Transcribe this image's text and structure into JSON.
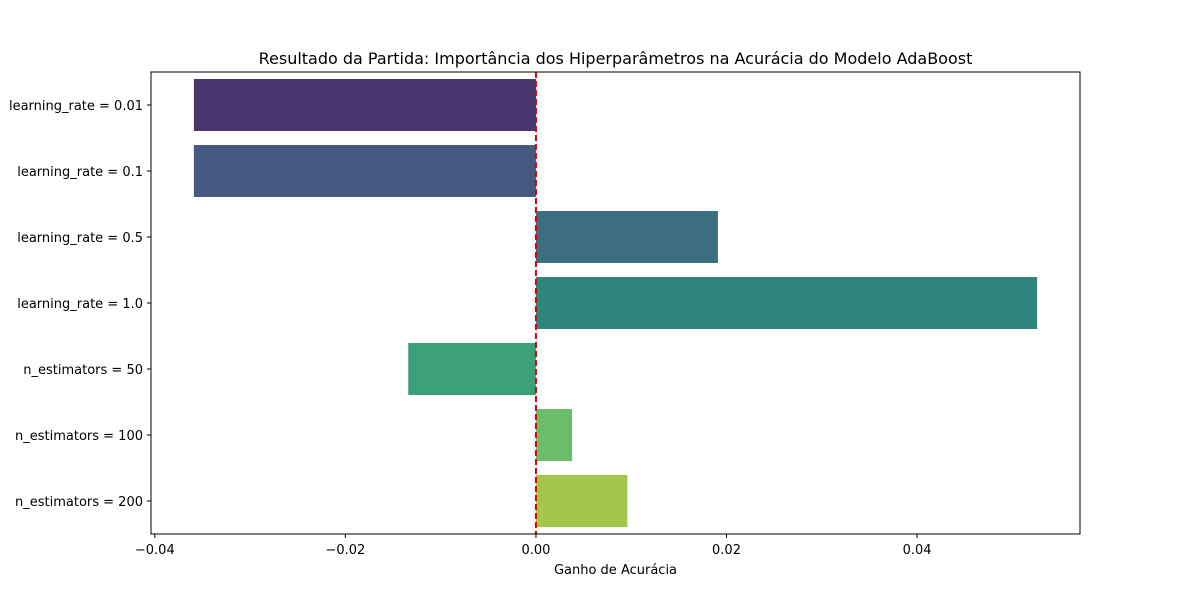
{
  "chart_data": {
    "type": "bar",
    "orientation": "horizontal",
    "title": "Resultado da Partida: Importância dos Hiperparâmetros na Acurácia do Modelo AdaBoost",
    "xlabel": "Ganho de Acurácia",
    "ylabel": "",
    "categories": [
      "learning_rate = 0.01",
      "learning_rate = 0.1",
      "learning_rate = 0.5",
      "learning_rate = 1.0",
      "n_estimators = 50",
      "n_estimators = 100",
      "n_estimators = 200"
    ],
    "values": [
      -0.0359,
      -0.0359,
      0.0191,
      0.0526,
      -0.0134,
      0.0038,
      0.0096
    ],
    "colors": [
      "#4a366e",
      "#465981",
      "#3a6e80",
      "#2e857e",
      "#3aa07a",
      "#6bbd6a",
      "#a3c74a"
    ],
    "xlim": [
      -0.0404,
      0.0571
    ],
    "xticks": [
      -0.04,
      -0.02,
      0.0,
      0.02,
      0.04
    ],
    "xtick_labels": [
      "−0.04",
      "−0.02",
      "0.00",
      "0.02",
      "0.04"
    ],
    "reference_line": {
      "x": 0,
      "color": "#e00000",
      "style": "dashed"
    },
    "grid": false
  }
}
